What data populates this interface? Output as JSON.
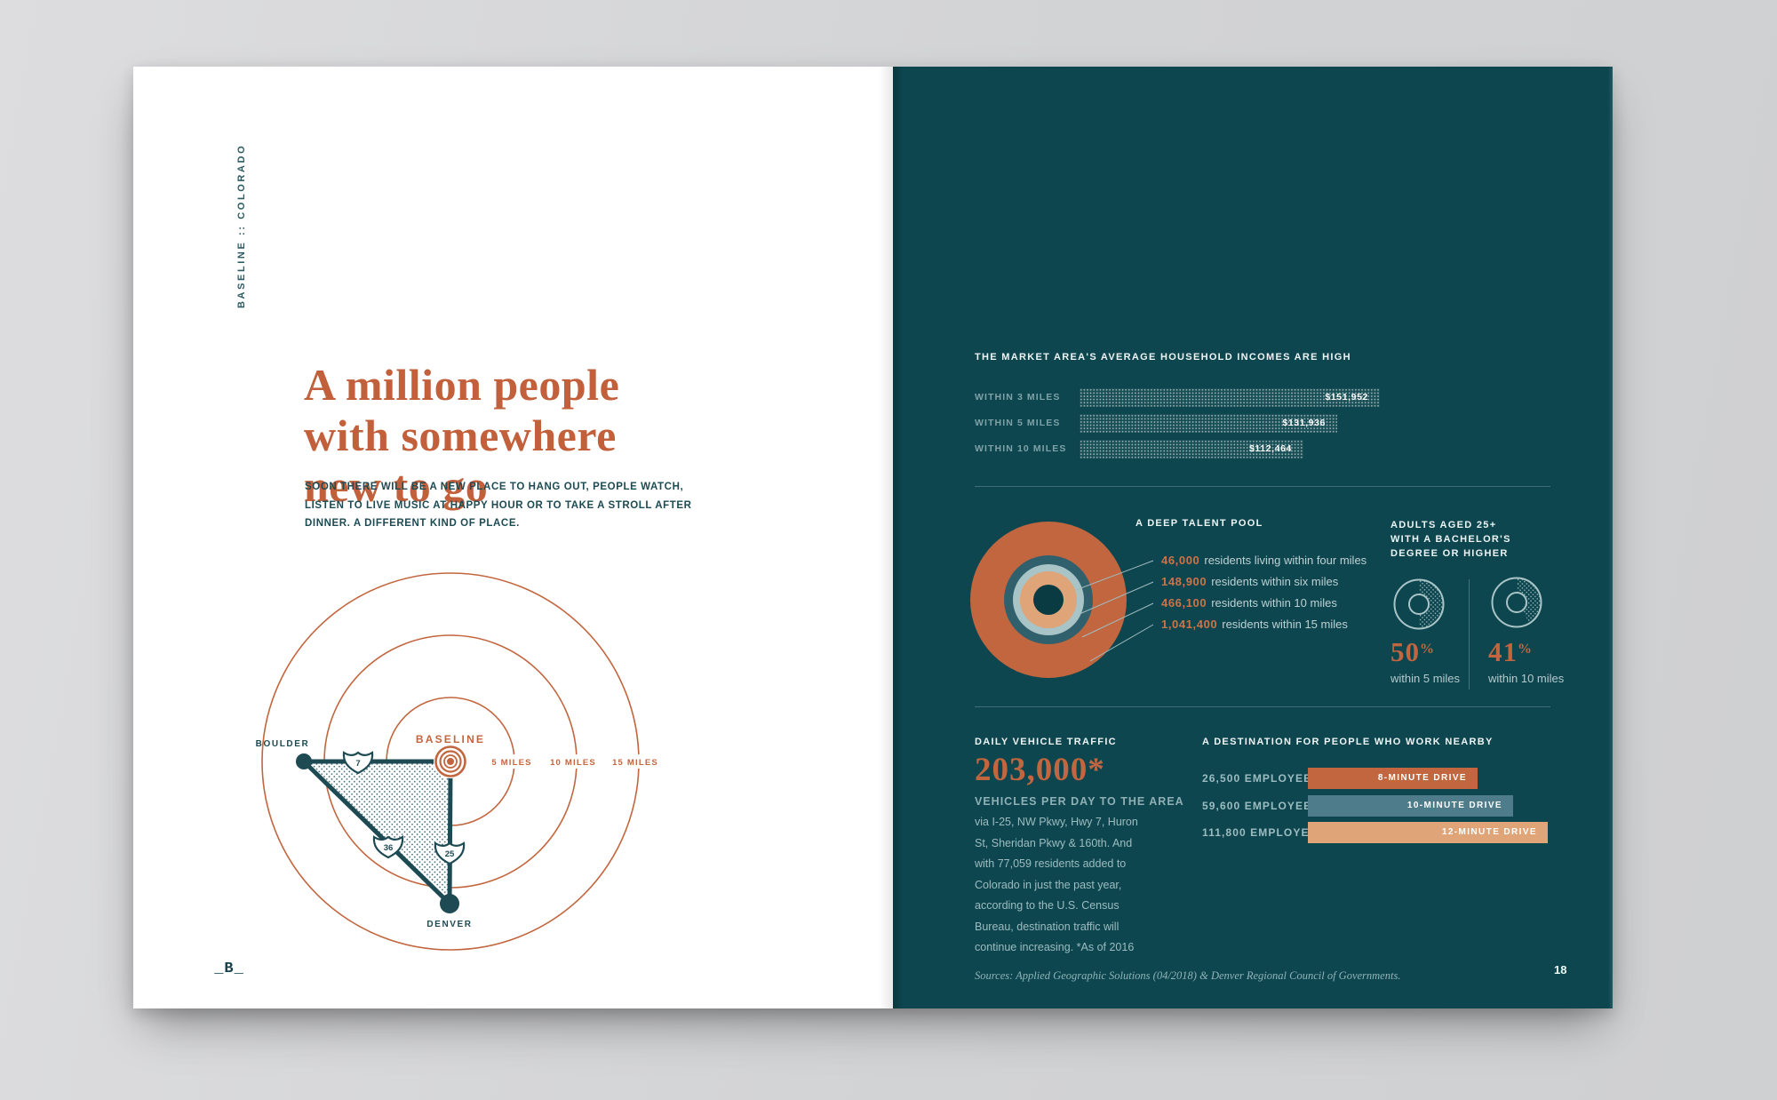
{
  "colors": {
    "orange": "#c2663f",
    "teal_background": "#0d464f",
    "ink_teal": "#1d4a53",
    "slate": "#4e7c8b",
    "peach": "#dfa478",
    "light_ring": "#a9c4c6"
  },
  "left_page": {
    "side_label": "BASELINE :: COLORADO",
    "headline_lines": [
      "A million people",
      "with somewhere",
      "new to go"
    ],
    "intro_lines": [
      "SOON THERE WILL BE A NEW PLACE TO HANG OUT, PEOPLE WATCH,",
      "LISTEN TO LIVE MUSIC AT HAPPY HOUR OR TO TAKE A STROLL AFTER",
      "DINNER. A DIFFERENT KIND OF PLACE."
    ],
    "map": {
      "center_label": "BASELINE",
      "city_labels": [
        "BOULDER",
        "DENVER"
      ],
      "ring_labels": [
        "5 MILES",
        "10 MILES",
        "15 MILES"
      ],
      "highway_labels": [
        "7",
        "36",
        "25"
      ]
    },
    "logo": "_B_"
  },
  "right_page": {
    "income": {
      "title": "THE MARKET AREA'S AVERAGE HOUSEHOLD INCOMES ARE HIGH",
      "rows": [
        {
          "label": "WITHIN 3 MILES",
          "value": "$151,952"
        },
        {
          "label": "WITHIN 5 MILES",
          "value": "$131,936"
        },
        {
          "label": "WITHIN 10 MILES",
          "value": "$112,464"
        }
      ]
    },
    "talent": {
      "title": "A DEEP TALENT POOL",
      "items": [
        {
          "number": "46,000",
          "text": "residents living within four miles"
        },
        {
          "number": "148,900",
          "text": "residents within six miles"
        },
        {
          "number": "466,100",
          "text": "residents within 10 miles"
        },
        {
          "number": "1,041,400",
          "text": "residents within 15 miles"
        }
      ]
    },
    "education": {
      "title_lines": [
        "ADULTS AGED 25+",
        "WITH A BACHELOR'S",
        "DEGREE OR HIGHER"
      ],
      "stats": [
        {
          "value": "50",
          "suffix": "%",
          "caption": "within 5 miles",
          "fraction": 0.5
        },
        {
          "value": "41",
          "suffix": "%",
          "caption": "within 10 miles",
          "fraction": 0.41
        }
      ]
    },
    "traffic": {
      "title": "DAILY VEHICLE TRAFFIC",
      "big_number": "203,000*",
      "subtitle": "VEHICLES PER DAY TO THE AREA",
      "body": "via I-25, NW Pkwy, Hwy 7, Huron St, Sheridan Pkwy & 160th. And with 77,059 residents added to Colorado in just the past year, according to the U.S. Census Bureau, destination traffic will continue increasing. *As of 2016"
    },
    "destination": {
      "title": "A DESTINATION FOR PEOPLE WHO WORK NEARBY",
      "rows": [
        {
          "label": "26,500 EMPLOYEES",
          "drive": "8-MINUTE DRIVE"
        },
        {
          "label": "59,600 EMPLOYEES",
          "drive": "10-MINUTE DRIVE"
        },
        {
          "label": "111,800 EMPLOYEES",
          "drive": "12-MINUTE DRIVE"
        }
      ]
    },
    "footer": {
      "sources": "Sources: Applied Geographic Solutions (04/2018) & Denver Regional Council of Governments.",
      "page_number": "18"
    }
  },
  "chart_data": [
    {
      "type": "bar",
      "title": "THE MARKET AREA'S AVERAGE HOUSEHOLD INCOMES ARE HIGH",
      "categories": [
        "WITHIN 3 MILES",
        "WITHIN 5 MILES",
        "WITHIN 10 MILES"
      ],
      "values": [
        151952,
        131936,
        112464
      ],
      "unit": "USD"
    },
    {
      "type": "bar",
      "title": "A DEEP TALENT POOL",
      "categories": [
        "within four miles",
        "within six miles",
        "within 10 miles",
        "within 15 miles"
      ],
      "values": [
        46000,
        148900,
        466100,
        1041400
      ],
      "unit": "residents"
    },
    {
      "type": "pie",
      "title": "ADULTS AGED 25+ WITH A BACHELOR'S DEGREE OR HIGHER",
      "categories": [
        "within 5 miles",
        "within 10 miles"
      ],
      "values": [
        50,
        41
      ],
      "unit": "percent"
    },
    {
      "type": "bar",
      "title": "A DESTINATION FOR PEOPLE WHO WORK NEARBY",
      "categories": [
        "26,500 EMPLOYEES",
        "59,600 EMPLOYEES",
        "111,800 EMPLOYEES"
      ],
      "values": [
        8,
        10,
        12
      ],
      "unit": "minute drive"
    }
  ]
}
